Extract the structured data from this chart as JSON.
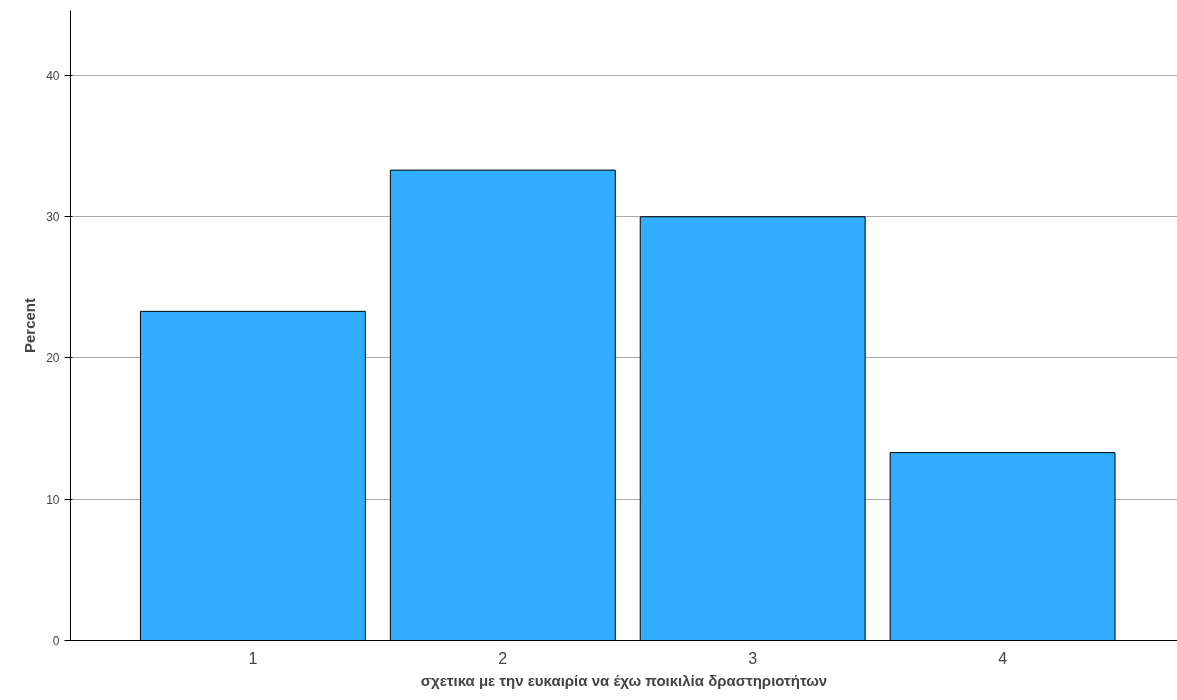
{
  "chart_data": {
    "type": "bar",
    "xlabel": "σχετικα με την ευκαιρία να έχω ποικιλία δραστηριοτήτων",
    "ylabel": "Percent",
    "categories": [
      "1",
      "2",
      "3",
      "4"
    ],
    "values": [
      23.3,
      33.3,
      30.0,
      13.3
    ],
    "color": "#31adff",
    "ylim": [
      0,
      44.6
    ],
    "yticks": [
      0,
      10,
      20,
      30,
      40
    ],
    "grid": "y"
  }
}
